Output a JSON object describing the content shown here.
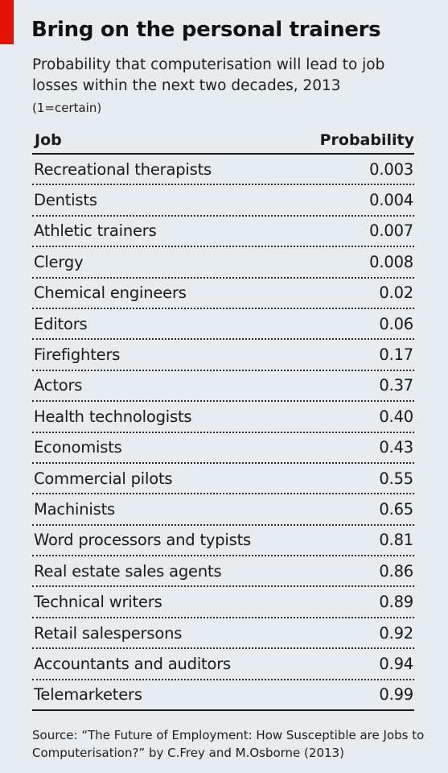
{
  "title": "Bring on the personal trainers",
  "subtitle": "Probability that computerisation will lead to job losses within the next two decades, 2013",
  "unit_note": "(1=certain)",
  "source": "Source: “The Future of Employment: How Susceptible are Jobs to Computerisation?” by C.Frey and M.Osborne (2013)",
  "colors": {
    "accent": "#e3120b",
    "background": "#e6ecef"
  },
  "chart_data": {
    "type": "table",
    "title": "Bring on the personal trainers",
    "subtitle": "Probability that computerisation will lead to job losses within the next two decades, 2013",
    "columns": [
      "Job",
      "Probability"
    ],
    "rows": [
      [
        "Recreational therapists",
        "0.003"
      ],
      [
        "Dentists",
        "0.004"
      ],
      [
        "Athletic trainers",
        "0.007"
      ],
      [
        "Clergy",
        "0.008"
      ],
      [
        "Chemical engineers",
        "0.02"
      ],
      [
        "Editors",
        "0.06"
      ],
      [
        "Firefighters",
        "0.17"
      ],
      [
        "Actors",
        "0.37"
      ],
      [
        "Health technologists",
        "0.40"
      ],
      [
        "Economists",
        "0.43"
      ],
      [
        "Commercial pilots",
        "0.55"
      ],
      [
        "Machinists",
        "0.65"
      ],
      [
        "Word processors and typists",
        "0.81"
      ],
      [
        "Real estate sales agents",
        "0.86"
      ],
      [
        "Technical writers",
        "0.89"
      ],
      [
        "Retail salespersons",
        "0.92"
      ],
      [
        "Accountants and auditors",
        "0.94"
      ],
      [
        "Telemarketers",
        "0.99"
      ]
    ]
  }
}
